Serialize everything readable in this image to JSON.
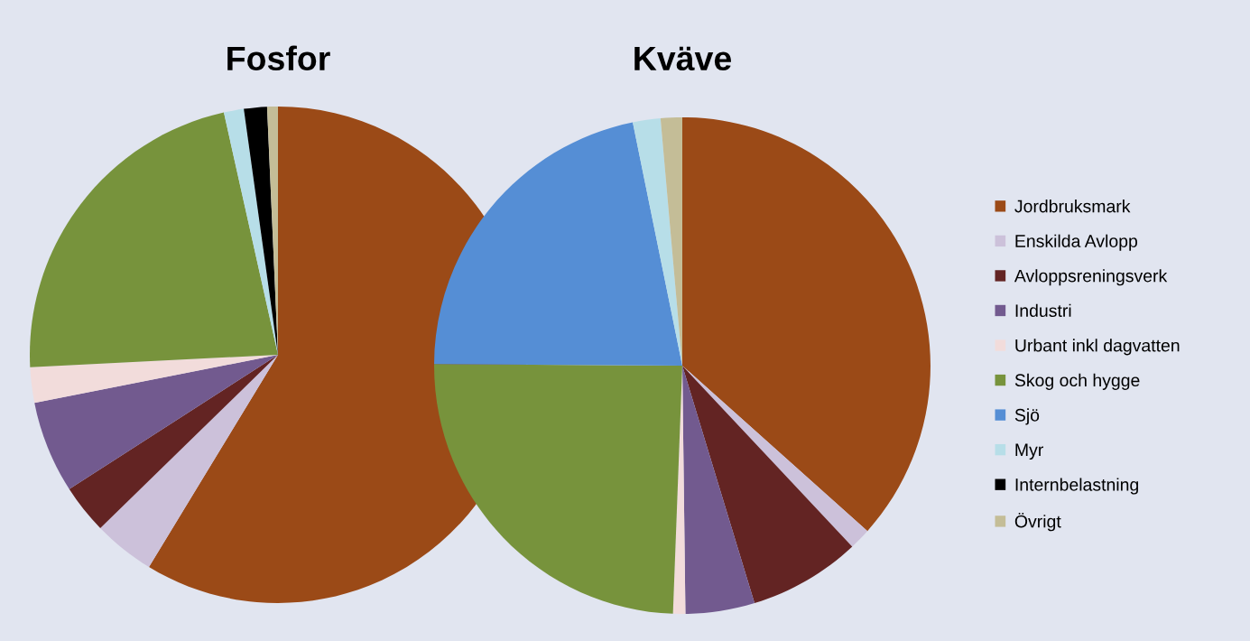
{
  "chart_data": [
    {
      "type": "pie",
      "title": "Fosfor",
      "categories": [
        "Jordbruksmark",
        "Enskilda Avlopp",
        "Avloppsreningsverk",
        "Industri",
        "Urbant inkl dagvatten",
        "Skog och hygge",
        "Sjö",
        "Myr",
        "Internbelastning",
        "Övrigt"
      ],
      "values": [
        58.7,
        4.0,
        3.2,
        6.0,
        2.3,
        22.3,
        0,
        1.3,
        1.5,
        0.7
      ],
      "colors": [
        "#9b4a17",
        "#ccc1da",
        "#632423",
        "#725a8f",
        "#f2dcdb",
        "#77933c",
        "#558ed5",
        "#b7dee8",
        "#000000",
        "#c4bd97"
      ],
      "legend": "right"
    },
    {
      "type": "pie",
      "title": "Kväve",
      "categories": [
        null,
        null,
        null,
        null,
        null,
        null,
        null,
        null,
        null,
        null
      ],
      "values": [
        36.6,
        1.4,
        7.3,
        4.5,
        0.8,
        24.5,
        21.7,
        1.8,
        0,
        1.4
      ],
      "colors": [
        "#9b4a17",
        "#ccc1da",
        "#632423",
        "#725a8f",
        "#f2dcdb",
        "#77933c",
        "#558ed5",
        "#b7dee8",
        "#000000",
        "#c4bd97"
      ],
      "legend": false
    }
  ]
}
